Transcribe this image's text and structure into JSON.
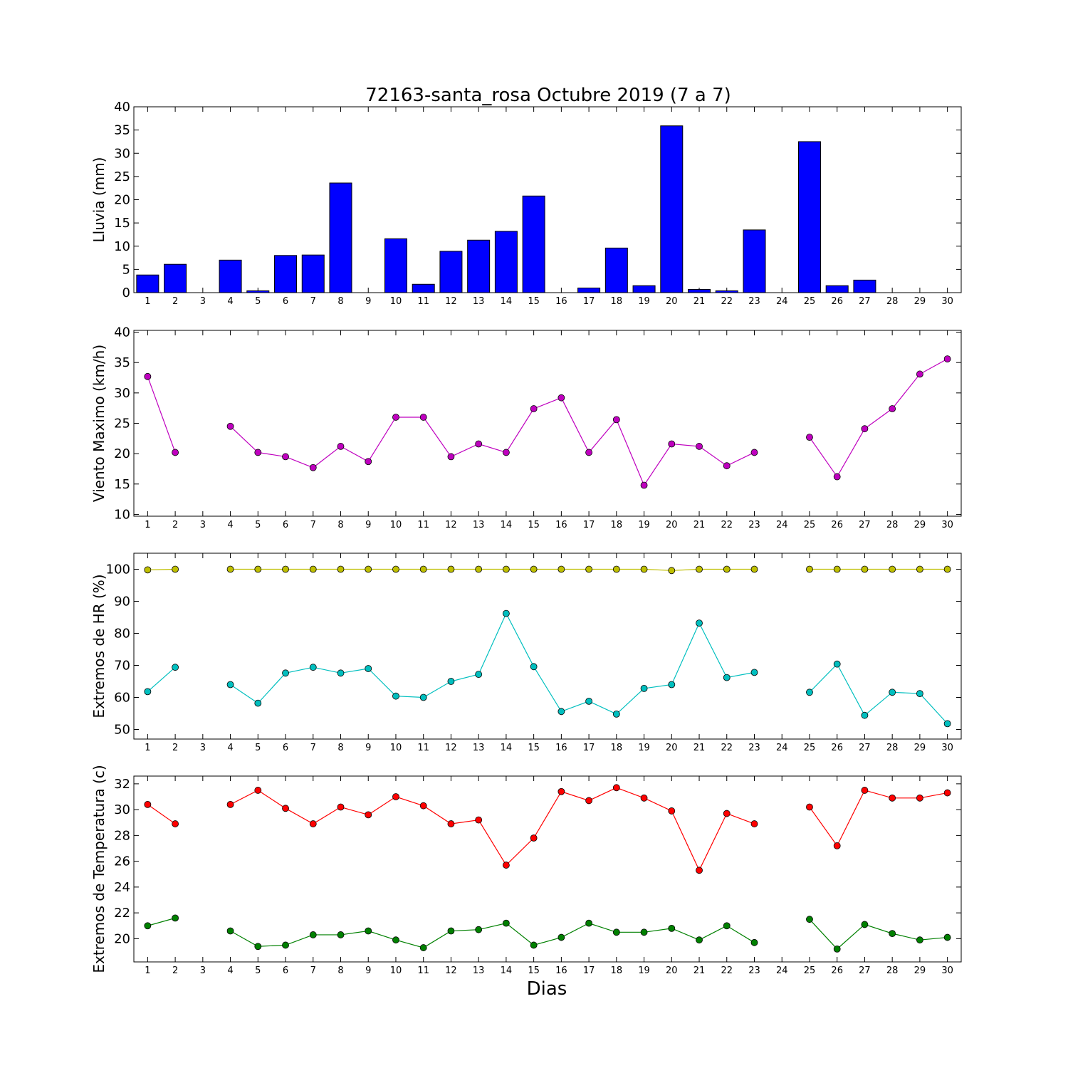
{
  "title": "72163-santa_rosa Octubre 2019  (7 a 7)",
  "xlabel": "Dias",
  "colors": {
    "rain": "#0000ff",
    "wind": "#bf00bf",
    "hr_max": "#bfbf00",
    "hr_min": "#00bfbf",
    "temp_max": "#ff0000",
    "temp_min": "#008000"
  },
  "chart_data": [
    {
      "type": "bar",
      "ylabel": "Lluvia (mm)",
      "ylim": [
        0,
        40
      ],
      "yticks": [
        0,
        5,
        10,
        15,
        20,
        25,
        30,
        35,
        40
      ],
      "categories": [
        1,
        2,
        3,
        4,
        5,
        6,
        7,
        8,
        9,
        10,
        11,
        12,
        13,
        14,
        15,
        16,
        17,
        18,
        19,
        20,
        21,
        22,
        23,
        24,
        25,
        26,
        27,
        28,
        29,
        30
      ],
      "series": [
        {
          "values": [
            3.8,
            6.1,
            0,
            7.0,
            0.4,
            8.0,
            8.1,
            23.6,
            0,
            11.6,
            1.8,
            8.9,
            11.3,
            13.2,
            20.8,
            0,
            1.0,
            9.6,
            1.5,
            35.9,
            0.7,
            0.4,
            13.5,
            0,
            32.5,
            1.5,
            2.7,
            0,
            0,
            0
          ]
        }
      ]
    },
    {
      "type": "line",
      "ylabel": "Viento Maximo (km/h)",
      "ylim": [
        9.7,
        40.3
      ],
      "yticks": [
        10,
        15,
        20,
        25,
        30,
        35,
        40
      ],
      "categories": [
        1,
        2,
        3,
        4,
        5,
        6,
        7,
        8,
        9,
        10,
        11,
        12,
        13,
        14,
        15,
        16,
        17,
        18,
        19,
        20,
        21,
        22,
        23,
        24,
        25,
        26,
        27,
        28,
        29,
        30
      ],
      "series": [
        {
          "values": [
            32.7,
            20.2,
            null,
            24.5,
            20.2,
            19.5,
            17.7,
            21.2,
            18.7,
            26.0,
            26.0,
            19.5,
            21.6,
            20.2,
            27.4,
            29.2,
            20.2,
            25.6,
            14.8,
            21.6,
            21.2,
            18.0,
            20.2,
            null,
            22.7,
            16.2,
            24.1,
            27.4,
            33.1,
            35.6
          ]
        }
      ]
    },
    {
      "type": "line",
      "ylabel": "Extremos de HR (%)",
      "ylim": [
        47,
        105
      ],
      "yticks": [
        50,
        60,
        70,
        80,
        90,
        100
      ],
      "categories": [
        1,
        2,
        3,
        4,
        5,
        6,
        7,
        8,
        9,
        10,
        11,
        12,
        13,
        14,
        15,
        16,
        17,
        18,
        19,
        20,
        21,
        22,
        23,
        24,
        25,
        26,
        27,
        28,
        29,
        30
      ],
      "series": [
        {
          "values": [
            99.8,
            100,
            null,
            100,
            100,
            100,
            100,
            100,
            100,
            100,
            100,
            100,
            100,
            100,
            100,
            100,
            100,
            100,
            100,
            99.6,
            100,
            100,
            100,
            null,
            100,
            100,
            100,
            100,
            100,
            100
          ]
        },
        {
          "values": [
            61.8,
            69.4,
            null,
            64.0,
            58.2,
            67.6,
            69.4,
            67.6,
            69.0,
            60.4,
            60.0,
            65.0,
            67.2,
            86.2,
            69.6,
            55.6,
            58.8,
            54.8,
            62.8,
            64.0,
            83.2,
            66.2,
            67.8,
            null,
            61.6,
            70.4,
            54.4,
            61.6,
            61.2,
            51.8
          ]
        }
      ]
    },
    {
      "type": "line",
      "ylabel": "Extremos de Temperatura (c)",
      "ylim": [
        18.2,
        32.6
      ],
      "yticks": [
        20,
        22,
        24,
        26,
        28,
        30,
        32
      ],
      "categories": [
        1,
        2,
        3,
        4,
        5,
        6,
        7,
        8,
        9,
        10,
        11,
        12,
        13,
        14,
        15,
        16,
        17,
        18,
        19,
        20,
        21,
        22,
        23,
        24,
        25,
        26,
        27,
        28,
        29,
        30
      ],
      "series": [
        {
          "values": [
            30.4,
            28.9,
            null,
            30.4,
            31.5,
            30.1,
            28.9,
            30.2,
            29.6,
            31.0,
            30.3,
            28.9,
            29.2,
            25.7,
            27.8,
            31.4,
            30.7,
            31.7,
            30.9,
            29.9,
            25.3,
            29.7,
            28.9,
            null,
            30.2,
            27.2,
            31.5,
            30.9,
            30.9,
            31.3
          ]
        },
        {
          "values": [
            21.0,
            21.6,
            null,
            20.6,
            19.4,
            19.5,
            20.3,
            20.3,
            20.6,
            19.9,
            19.3,
            20.6,
            20.7,
            21.2,
            19.5,
            20.1,
            21.2,
            20.5,
            20.5,
            20.8,
            19.9,
            21.0,
            19.7,
            null,
            21.5,
            19.2,
            21.1,
            20.4,
            19.9,
            20.1
          ]
        }
      ]
    }
  ]
}
